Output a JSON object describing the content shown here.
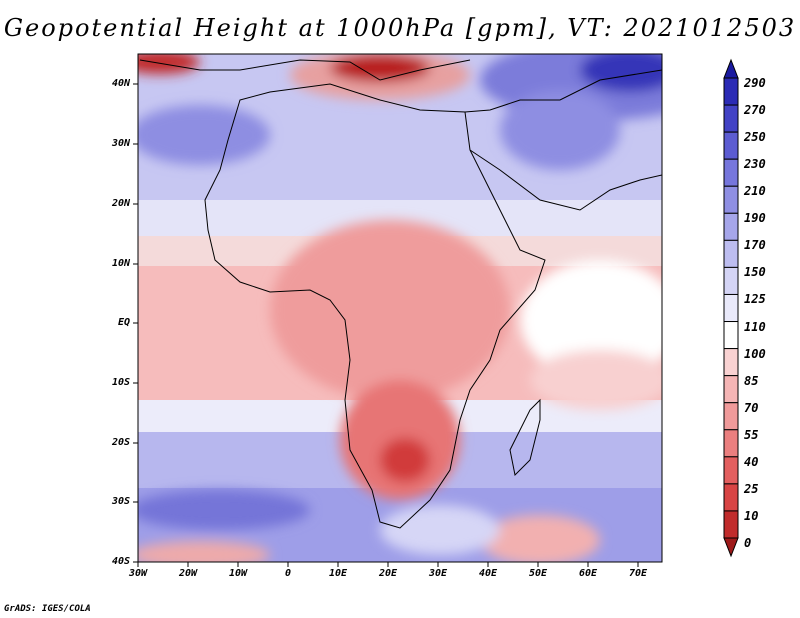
{
  "title": "Geopotential Height at 1000hPa [gpm], VT: 2021012503",
  "credit": "GrADS: IGES/COLA",
  "map": {
    "projection": "latlon",
    "lon_range": [
      -30,
      75
    ],
    "lat_range": [
      -40,
      45
    ],
    "lat_ticks": [
      "40N",
      "30N",
      "20N",
      "10N",
      "EQ",
      "10S",
      "20S",
      "30S",
      "40S"
    ],
    "lon_ticks": [
      "30W",
      "20W",
      "10W",
      "0",
      "10E",
      "20E",
      "30E",
      "40E",
      "50E",
      "60E",
      "70E"
    ]
  },
  "colorbar": {
    "levels": [
      "0",
      "10",
      "25",
      "40",
      "55",
      "70",
      "85",
      "100",
      "110",
      "125",
      "150",
      "170",
      "190",
      "210",
      "230",
      "250",
      "270",
      "290"
    ],
    "colors": [
      "#9e1a1a",
      "#c12c2c",
      "#d84444",
      "#e35f5f",
      "#eb7f7f",
      "#f09a9a",
      "#f5b5b5",
      "#f9d2d2",
      "#ffffff",
      "#e9e9fa",
      "#d4d4f5",
      "#bdbdf0",
      "#a6a6ea",
      "#8f8fe3",
      "#7676dc",
      "#5c5cd2",
      "#4242c5",
      "#2b2bb5",
      "#1a1aa0"
    ]
  }
}
